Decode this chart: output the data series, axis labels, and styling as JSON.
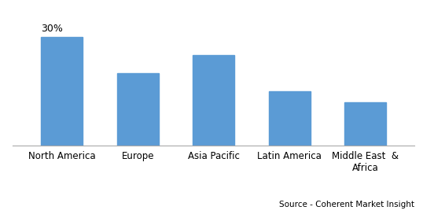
{
  "categories": [
    "North America",
    "Europe",
    "Asia Pacific",
    "Latin America",
    "Middle East  &\nAfrica"
  ],
  "values": [
    30,
    20,
    25,
    15,
    12
  ],
  "bar_color": "#5B9BD5",
  "annotation_label": "30%",
  "annotation_index": 0,
  "source_text": "Source - Coherent Market Insight",
  "ylim": [
    0,
    36
  ],
  "bar_width": 0.55,
  "background_color": "#ffffff",
  "label_fontsize": 8.5,
  "annotation_fontsize": 9,
  "source_fontsize": 7.5
}
